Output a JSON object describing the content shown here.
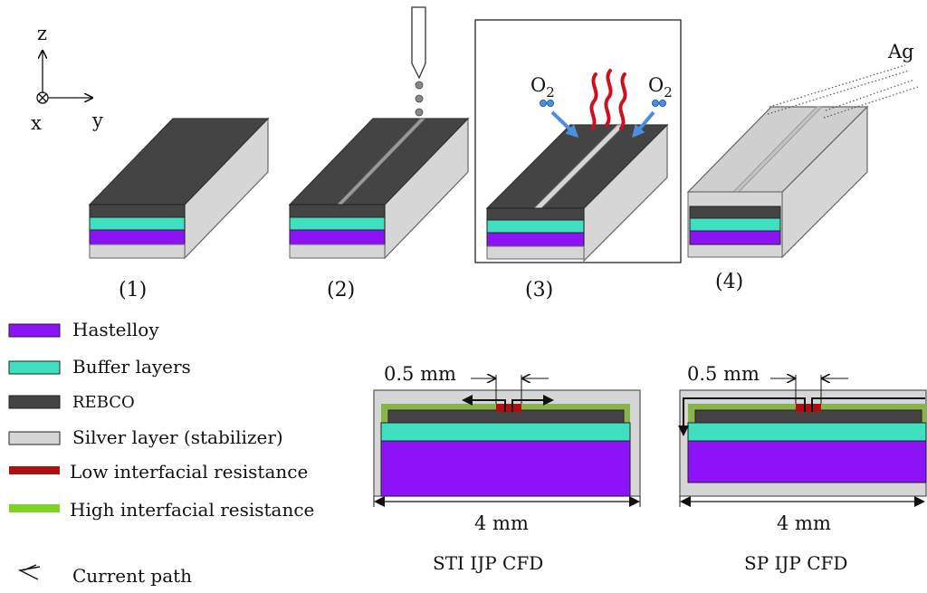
{
  "axes": {
    "z": "z",
    "x": "x",
    "y": "y"
  },
  "steps": [
    {
      "label": "(1)"
    },
    {
      "label": "(2)"
    },
    {
      "label": "(3)",
      "o2_left": "O",
      "o2_left_sub": "2",
      "o2_right": "O",
      "o2_right_sub": "2"
    },
    {
      "label": "(4)",
      "deposit": "Ag"
    }
  ],
  "legend": [
    {
      "label": "Hastelloy",
      "color": "#8b13f5"
    },
    {
      "label": "Buffer layers",
      "color": "#3ee0c0"
    },
    {
      "label": "REBCO",
      "color": "#444444"
    },
    {
      "label": "Silver layer (stabilizer)",
      "color": "#d6d6d6"
    },
    {
      "label": "Low interfacial resistance",
      "color": "#b10e0e"
    },
    {
      "label": "High interfacial resistance",
      "color": "#7ed321"
    },
    {
      "label": "Current path",
      "icon": "current-path-icon"
    }
  ],
  "cross_sections": [
    {
      "gap_label": "0.5 mm",
      "width_label": "4 mm",
      "caption": "STI IJP CFD"
    },
    {
      "gap_label": "0.5 mm",
      "width_label": "4 mm",
      "caption": "SP IJP CFD"
    }
  ]
}
